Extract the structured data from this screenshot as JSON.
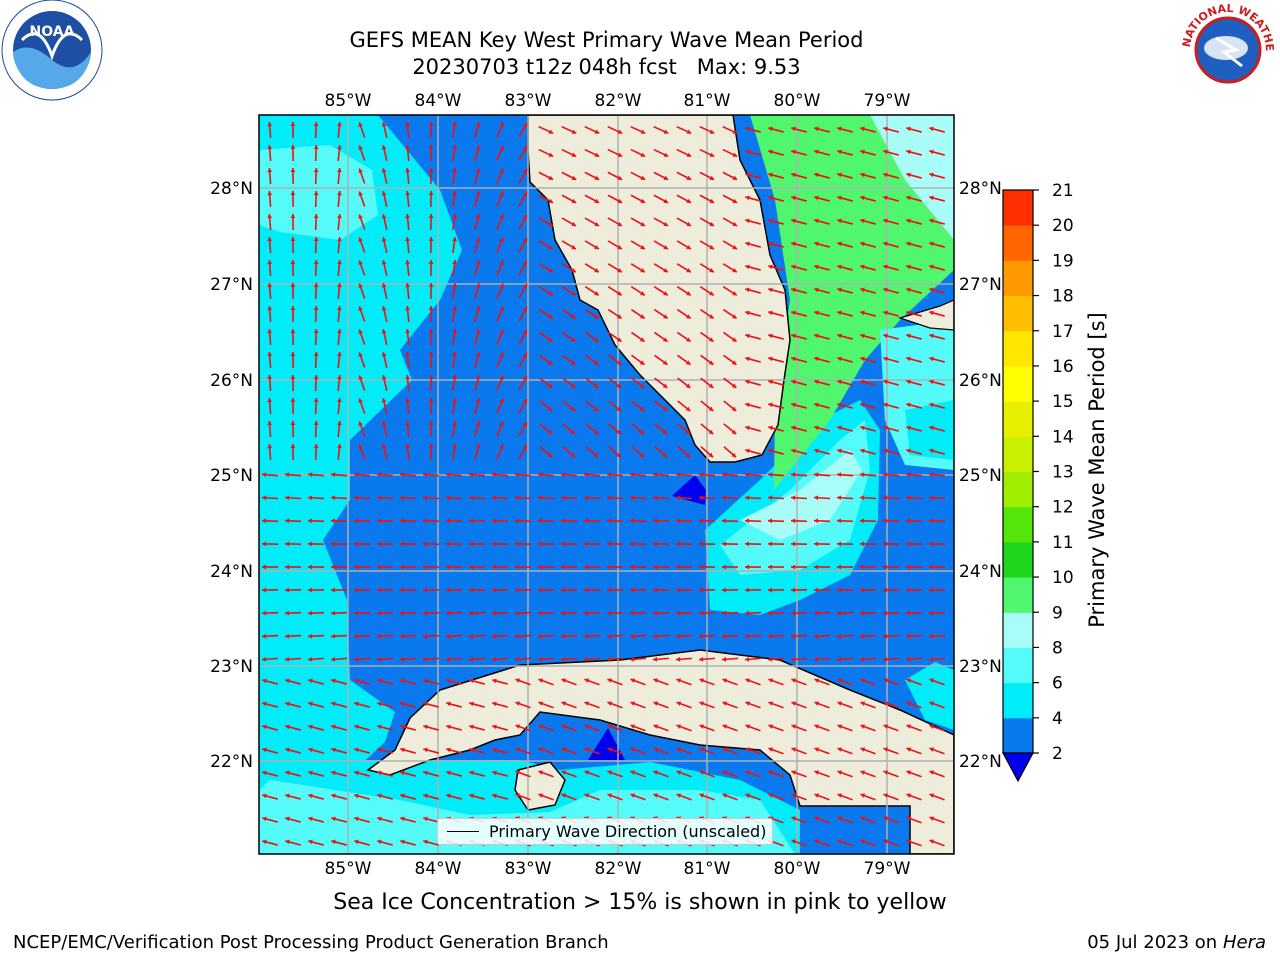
{
  "title": {
    "line1": "GEFS MEAN Key West Primary Wave Mean Period",
    "line2": "20230703 t12z 048h fcst   Max: 9.53"
  },
  "map": {
    "lon_labels": [
      "85°W",
      "84°W",
      "83°W",
      "82°W",
      "81°W",
      "80°W",
      "79°W"
    ],
    "lat_labels": [
      "28°N",
      "27°N",
      "26°N",
      "25°N",
      "24°N",
      "23°N",
      "22°N"
    ],
    "legend_label": "Primary Wave Direction (unscaled)",
    "colors": {
      "land": "#eeeddc",
      "ocean_2_4": "#0a79ee",
      "ocean_4_6": "#00ecf8",
      "ocean_6_8": "#54fbf8",
      "ocean_8_9": "#a8fdf8",
      "ocean_9_10": "#4ff66e",
      "ocean_below_2": "#0000ee",
      "arrow": "#ee1111",
      "grid": "#b0b0b0"
    }
  },
  "colorbar": {
    "title": "Primary Wave Mean Period [s]",
    "levels": [
      "2",
      "4",
      "6",
      "8",
      "9",
      "10",
      "11",
      "12",
      "13",
      "14",
      "15",
      "16",
      "17",
      "18",
      "19",
      "20",
      "21"
    ],
    "colors": [
      "#0a79ee",
      "#00ecf8",
      "#54fbf8",
      "#a8fdf8",
      "#4ff66e",
      "#1ed51e",
      "#54e60a",
      "#a0ee00",
      "#c8f000",
      "#e6f000",
      "#ffff00",
      "#ffe600",
      "#ffbf00",
      "#ff9900",
      "#ff6600",
      "#ff2f00",
      "#ff0000"
    ],
    "under_color": "#0000ee"
  },
  "ice_note": "Sea Ice Concentration > 15% is shown in pink to yellow",
  "footer": {
    "left": "NCEP/EMC/Verification Post Processing Product Generation Branch",
    "right_date": "05 Jul 2023 on ",
    "right_machine": "Hera"
  },
  "logos": {
    "noaa_text": "NOAA",
    "nws_text": "NATIONAL WEATHER SERVICE"
  }
}
